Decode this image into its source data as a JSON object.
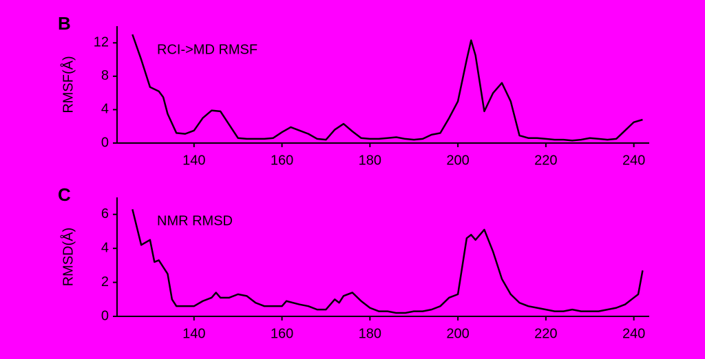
{
  "chart_data": [
    {
      "type": "line",
      "panel_label": "B",
      "annotation": "RCI->MD RMSF",
      "ylabel": "RMSF(Å)",
      "xlim": [
        122.5,
        243.5
      ],
      "xticks": [
        140,
        160,
        180,
        200,
        220,
        240
      ],
      "ylim": [
        0,
        14
      ],
      "yticks": [
        0,
        4,
        8,
        12
      ],
      "x": [
        126,
        128,
        130,
        132,
        133,
        134,
        136,
        138,
        140,
        142,
        144,
        146,
        148,
        150,
        152,
        154,
        156,
        158,
        160,
        162,
        164,
        166,
        168,
        170,
        172,
        174,
        176,
        178,
        180,
        182,
        184,
        186,
        188,
        190,
        192,
        194,
        196,
        198,
        200,
        202,
        203,
        204,
        206,
        208,
        210,
        212,
        214,
        216,
        218,
        220,
        222,
        224,
        226,
        228,
        230,
        232,
        234,
        236,
        238,
        240,
        242
      ],
      "series": [
        {
          "color": "#000000",
          "values": [
            13,
            10,
            6.7,
            6.2,
            5.5,
            3.5,
            1.2,
            1.1,
            1.5,
            3,
            3.9,
            3.8,
            2.2,
            0.6,
            0.5,
            0.5,
            0.5,
            0.6,
            1.3,
            1.9,
            1.5,
            1.1,
            0.5,
            0.4,
            1.6,
            2.3,
            1.4,
            0.6,
            0.5,
            0.5,
            0.6,
            0.7,
            0.5,
            0.4,
            0.5,
            1.0,
            1.2,
            3.0,
            5.0,
            10,
            12.3,
            10.5,
            3.8,
            6.0,
            7.2,
            5.0,
            0.9,
            0.6,
            0.6,
            0.5,
            0.4,
            0.4,
            0.3,
            0.4,
            0.6,
            0.5,
            0.4,
            0.5,
            1.5,
            2.5,
            2.8
          ]
        }
      ]
    },
    {
      "type": "line",
      "panel_label": "C",
      "annotation": "NMR RMSD",
      "ylabel": "RMSD(Å)",
      "xlim": [
        122.5,
        243.5
      ],
      "xticks": [
        140,
        160,
        180,
        200,
        220,
        240
      ],
      "ylim": [
        0,
        7
      ],
      "yticks": [
        0,
        2,
        4,
        6
      ],
      "x": [
        126,
        128,
        130,
        131,
        132,
        134,
        135,
        136,
        138,
        140,
        142,
        144,
        145,
        146,
        148,
        150,
        152,
        154,
        156,
        158,
        160,
        161,
        164,
        166,
        168,
        170,
        172,
        173,
        174,
        176,
        178,
        180,
        182,
        184,
        186,
        188,
        190,
        192,
        194,
        196,
        198,
        200,
        202,
        203,
        204,
        206,
        208,
        210,
        212,
        214,
        216,
        218,
        220,
        222,
        224,
        226,
        228,
        230,
        232,
        234,
        236,
        238,
        240,
        241,
        242
      ],
      "series": [
        {
          "color": "#000000",
          "values": [
            6.3,
            4.2,
            4.5,
            3.2,
            3.3,
            2.5,
            1.0,
            0.6,
            0.6,
            0.6,
            0.9,
            1.1,
            1.4,
            1.1,
            1.1,
            1.3,
            1.2,
            0.8,
            0.6,
            0.6,
            0.6,
            0.9,
            0.7,
            0.6,
            0.4,
            0.4,
            1.0,
            0.8,
            1.2,
            1.4,
            0.9,
            0.5,
            0.3,
            0.3,
            0.2,
            0.2,
            0.3,
            0.3,
            0.4,
            0.6,
            1.1,
            1.3,
            4.6,
            4.8,
            4.5,
            5.1,
            3.8,
            2.2,
            1.3,
            0.8,
            0.6,
            0.5,
            0.4,
            0.3,
            0.3,
            0.4,
            0.3,
            0.3,
            0.3,
            0.4,
            0.5,
            0.7,
            1.1,
            1.3,
            2.7
          ]
        }
      ]
    }
  ]
}
